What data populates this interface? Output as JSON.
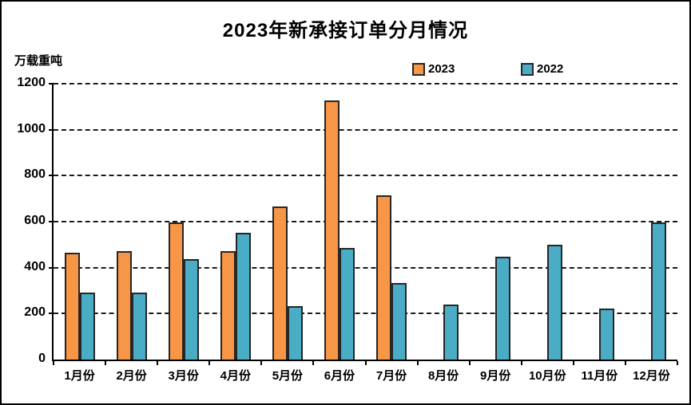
{
  "chart": {
    "title": "2023年新承接订单分月情况",
    "unit": "万载重吨"
  },
  "chart_data": {
    "type": "bar",
    "title": "2023年新承接订单分月情况",
    "ylabel": "万载重吨",
    "xlabel": "",
    "categories": [
      "1月份",
      "2月份",
      "3月份",
      "4月份",
      "5月份",
      "6月份",
      "7月份",
      "8月份",
      "9月份",
      "10月份",
      "11月份",
      "12月份"
    ],
    "series": [
      {
        "name": "2023",
        "color": "#F79646",
        "values": [
          459,
          464,
          590,
          465,
          660,
          1120,
          706,
          null,
          null,
          null,
          null,
          null
        ]
      },
      {
        "name": "2022",
        "color": "#4BACC6",
        "values": [
          286,
          284,
          430,
          545,
          227,
          479,
          325,
          232,
          440,
          493,
          216,
          588
        ]
      }
    ],
    "ylim": [
      0,
      1200
    ],
    "ytick_step": 200,
    "grid": "horizontal-dashed",
    "legend_position": "top"
  }
}
